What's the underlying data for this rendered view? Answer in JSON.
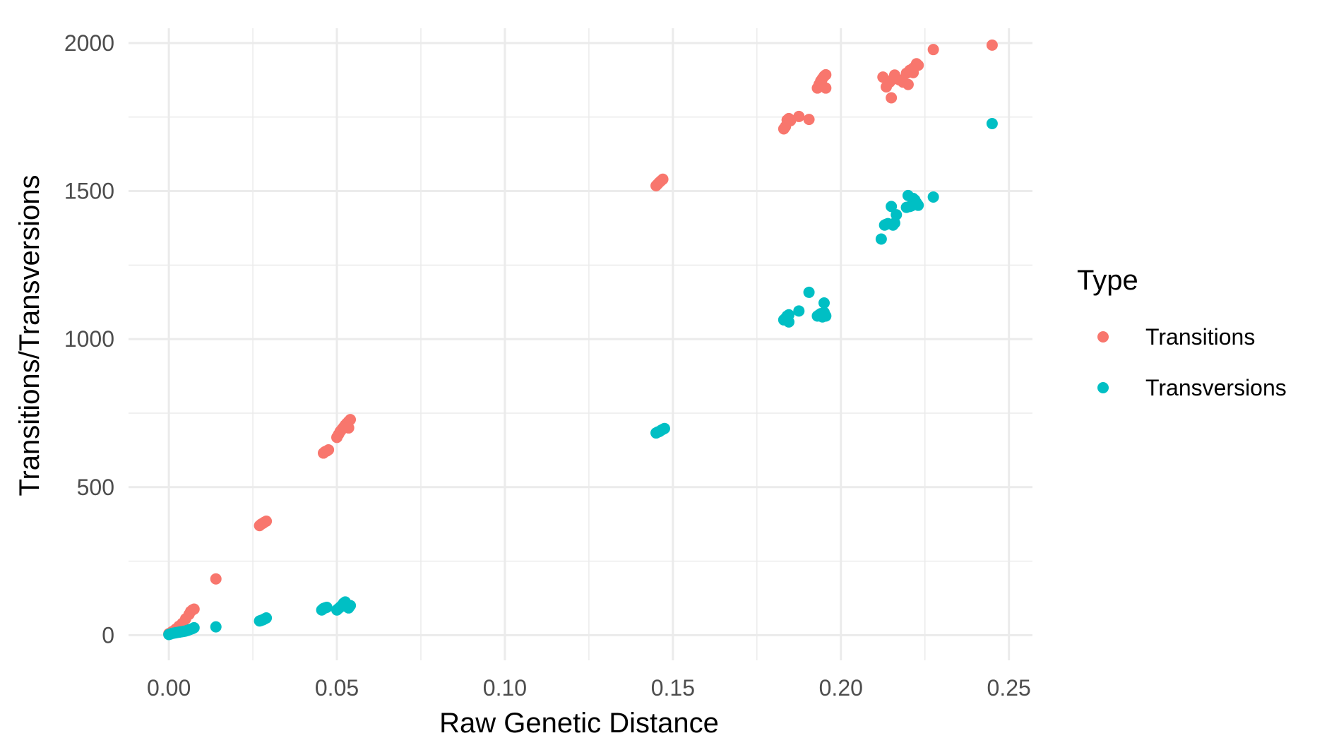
{
  "chart_data": {
    "type": "scatter",
    "title": "",
    "xlabel": "Raw Genetic Distance",
    "ylabel": "Transitions/Transversions",
    "xlim": [
      -0.012,
      0.257
    ],
    "ylim": [
      -85,
      2050
    ],
    "xticks": [
      0.0,
      0.05,
      0.1,
      0.15,
      0.2,
      0.25
    ],
    "xtick_labels": [
      "0.00",
      "0.05",
      "0.10",
      "0.15",
      "0.20",
      "0.25"
    ],
    "yticks": [
      0,
      500,
      1000,
      1500,
      2000
    ],
    "ytick_labels": [
      "0",
      "500",
      "1000",
      "1500",
      "2000"
    ],
    "grid": true,
    "legend": {
      "title": "Type",
      "position": "right"
    },
    "series": [
      {
        "name": "Transitions",
        "color": "#F8766D",
        "points": [
          [
            0.0,
            5
          ],
          [
            0.001,
            12
          ],
          [
            0.002,
            20
          ],
          [
            0.003,
            30
          ],
          [
            0.004,
            40
          ],
          [
            0.005,
            55
          ],
          [
            0.006,
            70
          ],
          [
            0.0065,
            80
          ],
          [
            0.007,
            85
          ],
          [
            0.0075,
            88
          ],
          [
            0.014,
            190
          ],
          [
            0.027,
            370
          ],
          [
            0.0275,
            375
          ],
          [
            0.028,
            378
          ],
          [
            0.0285,
            382
          ],
          [
            0.029,
            385
          ],
          [
            0.046,
            615
          ],
          [
            0.0465,
            620
          ],
          [
            0.047,
            622
          ],
          [
            0.0475,
            626
          ],
          [
            0.05,
            668
          ],
          [
            0.0505,
            678
          ],
          [
            0.051,
            688
          ],
          [
            0.0515,
            695
          ],
          [
            0.052,
            702
          ],
          [
            0.0525,
            710
          ],
          [
            0.053,
            716
          ],
          [
            0.0535,
            722
          ],
          [
            0.054,
            728
          ],
          [
            0.0535,
            700
          ],
          [
            0.145,
            1518
          ],
          [
            0.1455,
            1524
          ],
          [
            0.146,
            1530
          ],
          [
            0.1465,
            1535
          ],
          [
            0.147,
            1540
          ],
          [
            0.183,
            1710
          ],
          [
            0.1835,
            1718
          ],
          [
            0.184,
            1740
          ],
          [
            0.1845,
            1745
          ],
          [
            0.185,
            1738
          ],
          [
            0.1875,
            1752
          ],
          [
            0.1905,
            1742
          ],
          [
            0.193,
            1848
          ],
          [
            0.1935,
            1860
          ],
          [
            0.194,
            1872
          ],
          [
            0.1945,
            1880
          ],
          [
            0.195,
            1888
          ],
          [
            0.1955,
            1893
          ],
          [
            0.1955,
            1848
          ],
          [
            0.1945,
            1856
          ],
          [
            0.2125,
            1885
          ],
          [
            0.2135,
            1852
          ],
          [
            0.2145,
            1868
          ],
          [
            0.215,
            1815
          ],
          [
            0.2155,
            1878
          ],
          [
            0.216,
            1892
          ],
          [
            0.2175,
            1875
          ],
          [
            0.2185,
            1868
          ],
          [
            0.2195,
            1898
          ],
          [
            0.22,
            1860
          ],
          [
            0.2205,
            1908
          ],
          [
            0.2215,
            1915
          ],
          [
            0.222,
            1920
          ],
          [
            0.2225,
            1930
          ],
          [
            0.223,
            1925
          ],
          [
            0.2215,
            1900
          ],
          [
            0.2275,
            1978
          ],
          [
            0.245,
            1993
          ]
        ]
      },
      {
        "name": "Transversions",
        "color": "#00BFC4",
        "points": [
          [
            0.0,
            2
          ],
          [
            0.0005,
            4
          ],
          [
            0.001,
            6
          ],
          [
            0.0015,
            7
          ],
          [
            0.002,
            8
          ],
          [
            0.0025,
            9
          ],
          [
            0.003,
            10
          ],
          [
            0.0035,
            11
          ],
          [
            0.004,
            12
          ],
          [
            0.0045,
            13
          ],
          [
            0.005,
            14
          ],
          [
            0.0055,
            16
          ],
          [
            0.006,
            18
          ],
          [
            0.0065,
            20
          ],
          [
            0.007,
            22
          ],
          [
            0.0075,
            25
          ],
          [
            0.014,
            28
          ],
          [
            0.027,
            48
          ],
          [
            0.0275,
            50
          ],
          [
            0.028,
            52
          ],
          [
            0.0285,
            55
          ],
          [
            0.029,
            58
          ],
          [
            0.0455,
            85
          ],
          [
            0.046,
            90
          ],
          [
            0.0465,
            92
          ],
          [
            0.047,
            94
          ],
          [
            0.05,
            85
          ],
          [
            0.0505,
            90
          ],
          [
            0.051,
            95
          ],
          [
            0.0515,
            100
          ],
          [
            0.052,
            108
          ],
          [
            0.0525,
            112
          ],
          [
            0.053,
            96
          ],
          [
            0.0535,
            92
          ],
          [
            0.054,
            100
          ],
          [
            0.145,
            683
          ],
          [
            0.1455,
            686
          ],
          [
            0.146,
            688
          ],
          [
            0.1465,
            692
          ],
          [
            0.147,
            695
          ],
          [
            0.1475,
            698
          ],
          [
            0.183,
            1065
          ],
          [
            0.1835,
            1070
          ],
          [
            0.184,
            1078
          ],
          [
            0.1845,
            1082
          ],
          [
            0.1845,
            1058
          ],
          [
            0.1875,
            1095
          ],
          [
            0.1905,
            1158
          ],
          [
            0.193,
            1078
          ],
          [
            0.1935,
            1082
          ],
          [
            0.194,
            1086
          ],
          [
            0.1945,
            1075
          ],
          [
            0.195,
            1090
          ],
          [
            0.1955,
            1078
          ],
          [
            0.195,
            1122
          ],
          [
            0.212,
            1338
          ],
          [
            0.213,
            1385
          ],
          [
            0.2135,
            1388
          ],
          [
            0.214,
            1390
          ],
          [
            0.215,
            1448
          ],
          [
            0.2155,
            1385
          ],
          [
            0.216,
            1392
          ],
          [
            0.2165,
            1420
          ],
          [
            0.2195,
            1445
          ],
          [
            0.22,
            1485
          ],
          [
            0.2205,
            1448
          ],
          [
            0.221,
            1450
          ],
          [
            0.2215,
            1475
          ],
          [
            0.222,
            1470
          ],
          [
            0.2225,
            1460
          ],
          [
            0.223,
            1452
          ],
          [
            0.2275,
            1480
          ],
          [
            0.245,
            1728
          ]
        ]
      }
    ]
  }
}
